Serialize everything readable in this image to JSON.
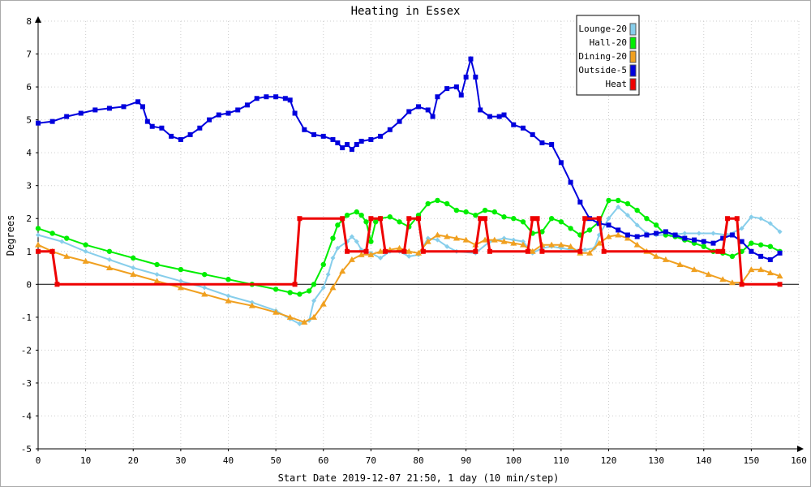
{
  "chart_data": {
    "type": "line",
    "title": "Heating in Essex",
    "xlabel": "Start Date 2019-12-07 21:50, 1 day (10 min/step)",
    "ylabel": "Degrees",
    "xlim": [
      0,
      160
    ],
    "ylim": [
      -5,
      8
    ],
    "xticks": [
      0,
      10,
      20,
      30,
      40,
      50,
      60,
      70,
      80,
      90,
      100,
      110,
      120,
      130,
      140,
      150,
      160
    ],
    "yticks": [
      -5,
      -4,
      -3,
      -2,
      -1,
      0,
      1,
      2,
      3,
      4,
      5,
      6,
      7,
      8
    ],
    "grid": true,
    "legend_position": "top-right",
    "series": [
      {
        "name": "Lounge-20",
        "color": "#87ceeb",
        "marker": "diamond",
        "points": [
          [
            0,
            1.5
          ],
          [
            5,
            1.3
          ],
          [
            10,
            1.0
          ],
          [
            15,
            0.75
          ],
          [
            20,
            0.5
          ],
          [
            25,
            0.3
          ],
          [
            30,
            0.1
          ],
          [
            35,
            -0.1
          ],
          [
            40,
            -0.35
          ],
          [
            45,
            -0.55
          ],
          [
            50,
            -0.8
          ],
          [
            53,
            -1.05
          ],
          [
            55,
            -1.2
          ],
          [
            57,
            -1.1
          ],
          [
            58,
            -0.5
          ],
          [
            60,
            -0.1
          ],
          [
            61,
            0.3
          ],
          [
            62,
            0.8
          ],
          [
            63,
            1.1
          ],
          [
            65,
            1.3
          ],
          [
            66,
            1.45
          ],
          [
            67,
            1.3
          ],
          [
            68,
            1.05
          ],
          [
            70,
            0.95
          ],
          [
            72,
            0.8
          ],
          [
            74,
            1.0
          ],
          [
            76,
            1.0
          ],
          [
            78,
            0.85
          ],
          [
            80,
            0.9
          ],
          [
            82,
            1.4
          ],
          [
            84,
            1.35
          ],
          [
            86,
            1.15
          ],
          [
            88,
            1.0
          ],
          [
            92,
            0.95
          ],
          [
            95,
            1.3
          ],
          [
            98,
            1.4
          ],
          [
            100,
            1.35
          ],
          [
            102,
            1.3
          ],
          [
            104,
            0.95
          ],
          [
            106,
            1.1
          ],
          [
            108,
            1.15
          ],
          [
            110,
            1.1
          ],
          [
            112,
            1.05
          ],
          [
            115,
            1.05
          ],
          [
            117,
            1.1
          ],
          [
            118,
            1.5
          ],
          [
            120,
            2.0
          ],
          [
            122,
            2.35
          ],
          [
            124,
            2.1
          ],
          [
            126,
            1.8
          ],
          [
            128,
            1.55
          ],
          [
            130,
            1.5
          ],
          [
            133,
            1.5
          ],
          [
            136,
            1.55
          ],
          [
            139,
            1.55
          ],
          [
            142,
            1.55
          ],
          [
            145,
            1.5
          ],
          [
            148,
            1.7
          ],
          [
            150,
            2.05
          ],
          [
            152,
            2.0
          ],
          [
            154,
            1.85
          ],
          [
            156,
            1.6
          ]
        ]
      },
      {
        "name": "Hall-20",
        "color": "#00ee00",
        "marker": "circle",
        "points": [
          [
            0,
            1.7
          ],
          [
            3,
            1.55
          ],
          [
            6,
            1.4
          ],
          [
            10,
            1.2
          ],
          [
            15,
            1.0
          ],
          [
            20,
            0.8
          ],
          [
            25,
            0.6
          ],
          [
            30,
            0.45
          ],
          [
            35,
            0.3
          ],
          [
            40,
            0.15
          ],
          [
            45,
            0.0
          ],
          [
            50,
            -0.15
          ],
          [
            53,
            -0.25
          ],
          [
            55,
            -0.3
          ],
          [
            57,
            -0.2
          ],
          [
            58,
            0.0
          ],
          [
            60,
            0.6
          ],
          [
            62,
            1.4
          ],
          [
            63,
            1.8
          ],
          [
            65,
            2.1
          ],
          [
            67,
            2.2
          ],
          [
            68,
            2.1
          ],
          [
            69,
            1.9
          ],
          [
            70,
            1.3
          ],
          [
            71,
            1.9
          ],
          [
            72,
            2.0
          ],
          [
            74,
            2.05
          ],
          [
            76,
            1.9
          ],
          [
            78,
            1.75
          ],
          [
            80,
            2.1
          ],
          [
            82,
            2.45
          ],
          [
            84,
            2.55
          ],
          [
            86,
            2.45
          ],
          [
            88,
            2.25
          ],
          [
            90,
            2.2
          ],
          [
            92,
            2.1
          ],
          [
            94,
            2.25
          ],
          [
            96,
            2.2
          ],
          [
            98,
            2.05
          ],
          [
            100,
            2.0
          ],
          [
            102,
            1.9
          ],
          [
            104,
            1.55
          ],
          [
            106,
            1.6
          ],
          [
            108,
            2.0
          ],
          [
            110,
            1.9
          ],
          [
            112,
            1.7
          ],
          [
            114,
            1.5
          ],
          [
            116,
            1.65
          ],
          [
            118,
            1.9
          ],
          [
            120,
            2.55
          ],
          [
            122,
            2.55
          ],
          [
            124,
            2.45
          ],
          [
            126,
            2.25
          ],
          [
            128,
            2.0
          ],
          [
            130,
            1.8
          ],
          [
            132,
            1.5
          ],
          [
            134,
            1.45
          ],
          [
            136,
            1.35
          ],
          [
            138,
            1.25
          ],
          [
            140,
            1.15
          ],
          [
            142,
            1.0
          ],
          [
            144,
            0.95
          ],
          [
            146,
            0.85
          ],
          [
            148,
            1.0
          ],
          [
            150,
            1.25
          ],
          [
            152,
            1.2
          ],
          [
            154,
            1.15
          ],
          [
            156,
            1.0
          ]
        ]
      },
      {
        "name": "Dining-20",
        "color": "#f0a020",
        "marker": "triangle",
        "points": [
          [
            0,
            1.2
          ],
          [
            3,
            1.0
          ],
          [
            6,
            0.85
          ],
          [
            10,
            0.7
          ],
          [
            15,
            0.5
          ],
          [
            20,
            0.3
          ],
          [
            25,
            0.1
          ],
          [
            30,
            -0.1
          ],
          [
            35,
            -0.3
          ],
          [
            40,
            -0.5
          ],
          [
            45,
            -0.65
          ],
          [
            50,
            -0.85
          ],
          [
            53,
            -1.0
          ],
          [
            56,
            -1.15
          ],
          [
            58,
            -1.0
          ],
          [
            60,
            -0.6
          ],
          [
            62,
            -0.1
          ],
          [
            64,
            0.4
          ],
          [
            66,
            0.75
          ],
          [
            68,
            0.9
          ],
          [
            70,
            0.9
          ],
          [
            72,
            1.0
          ],
          [
            74,
            1.05
          ],
          [
            76,
            1.1
          ],
          [
            78,
            1.0
          ],
          [
            80,
            0.95
          ],
          [
            82,
            1.3
          ],
          [
            84,
            1.5
          ],
          [
            86,
            1.45
          ],
          [
            88,
            1.4
          ],
          [
            90,
            1.35
          ],
          [
            92,
            1.2
          ],
          [
            94,
            1.35
          ],
          [
            96,
            1.35
          ],
          [
            98,
            1.3
          ],
          [
            100,
            1.25
          ],
          [
            102,
            1.2
          ],
          [
            104,
            1.0
          ],
          [
            106,
            1.2
          ],
          [
            108,
            1.2
          ],
          [
            110,
            1.2
          ],
          [
            112,
            1.15
          ],
          [
            114,
            0.95
          ],
          [
            116,
            0.95
          ],
          [
            118,
            1.25
          ],
          [
            120,
            1.45
          ],
          [
            122,
            1.5
          ],
          [
            124,
            1.4
          ],
          [
            126,
            1.2
          ],
          [
            128,
            1.0
          ],
          [
            130,
            0.85
          ],
          [
            132,
            0.75
          ],
          [
            135,
            0.6
          ],
          [
            138,
            0.45
          ],
          [
            141,
            0.3
          ],
          [
            144,
            0.15
          ],
          [
            146,
            0.05
          ],
          [
            148,
            0.05
          ],
          [
            150,
            0.45
          ],
          [
            152,
            0.45
          ],
          [
            154,
            0.35
          ],
          [
            156,
            0.25
          ]
        ]
      },
      {
        "name": "Outside-5",
        "color": "#0000dd",
        "marker": "square",
        "points": [
          [
            0,
            4.9
          ],
          [
            3,
            4.95
          ],
          [
            6,
            5.1
          ],
          [
            9,
            5.2
          ],
          [
            12,
            5.3
          ],
          [
            15,
            5.35
          ],
          [
            18,
            5.4
          ],
          [
            21,
            5.55
          ],
          [
            22,
            5.4
          ],
          [
            23,
            4.95
          ],
          [
            24,
            4.8
          ],
          [
            26,
            4.75
          ],
          [
            28,
            4.5
          ],
          [
            30,
            4.4
          ],
          [
            32,
            4.55
          ],
          [
            34,
            4.75
          ],
          [
            36,
            5.0
          ],
          [
            38,
            5.15
          ],
          [
            40,
            5.2
          ],
          [
            42,
            5.3
          ],
          [
            44,
            5.45
          ],
          [
            46,
            5.65
          ],
          [
            48,
            5.7
          ],
          [
            50,
            5.7
          ],
          [
            52,
            5.65
          ],
          [
            53,
            5.6
          ],
          [
            54,
            5.2
          ],
          [
            56,
            4.7
          ],
          [
            58,
            4.55
          ],
          [
            60,
            4.5
          ],
          [
            62,
            4.4
          ],
          [
            63,
            4.3
          ],
          [
            64,
            4.15
          ],
          [
            65,
            4.25
          ],
          [
            66,
            4.1
          ],
          [
            67,
            4.25
          ],
          [
            68,
            4.35
          ],
          [
            70,
            4.4
          ],
          [
            72,
            4.5
          ],
          [
            74,
            4.7
          ],
          [
            76,
            4.95
          ],
          [
            78,
            5.25
          ],
          [
            80,
            5.4
          ],
          [
            82,
            5.3
          ],
          [
            83,
            5.1
          ],
          [
            84,
            5.7
          ],
          [
            86,
            5.95
          ],
          [
            88,
            6.0
          ],
          [
            89,
            5.75
          ],
          [
            90,
            6.3
          ],
          [
            91,
            6.85
          ],
          [
            92,
            6.3
          ],
          [
            93,
            5.3
          ],
          [
            95,
            5.1
          ],
          [
            97,
            5.1
          ],
          [
            98,
            5.15
          ],
          [
            100,
            4.85
          ],
          [
            102,
            4.75
          ],
          [
            104,
            4.55
          ],
          [
            106,
            4.3
          ],
          [
            108,
            4.25
          ],
          [
            110,
            3.7
          ],
          [
            112,
            3.1
          ],
          [
            114,
            2.5
          ],
          [
            116,
            2.0
          ],
          [
            118,
            1.85
          ],
          [
            120,
            1.8
          ],
          [
            122,
            1.65
          ],
          [
            124,
            1.5
          ],
          [
            126,
            1.45
          ],
          [
            128,
            1.5
          ],
          [
            130,
            1.55
          ],
          [
            132,
            1.6
          ],
          [
            134,
            1.5
          ],
          [
            136,
            1.4
          ],
          [
            138,
            1.35
          ],
          [
            140,
            1.3
          ],
          [
            142,
            1.25
          ],
          [
            144,
            1.4
          ],
          [
            146,
            1.5
          ],
          [
            148,
            1.3
          ],
          [
            150,
            1.0
          ],
          [
            152,
            0.85
          ],
          [
            154,
            0.75
          ],
          [
            156,
            0.95
          ]
        ]
      },
      {
        "name": "Heat",
        "color": "#ee0000",
        "marker": "square",
        "points": [
          [
            0,
            1
          ],
          [
            3,
            1
          ],
          [
            4,
            0
          ],
          [
            54,
            0
          ],
          [
            55,
            2
          ],
          [
            64,
            2
          ],
          [
            65,
            1
          ],
          [
            69,
            1
          ],
          [
            70,
            2
          ],
          [
            72,
            2
          ],
          [
            73,
            1
          ],
          [
            77,
            1
          ],
          [
            78,
            2
          ],
          [
            80,
            2
          ],
          [
            81,
            1
          ],
          [
            92,
            1
          ],
          [
            93,
            2
          ],
          [
            94,
            2
          ],
          [
            95,
            1
          ],
          [
            103,
            1
          ],
          [
            104,
            2
          ],
          [
            105,
            2
          ],
          [
            106,
            1
          ],
          [
            114,
            1
          ],
          [
            115,
            2
          ],
          [
            118,
            2
          ],
          [
            119,
            1
          ],
          [
            143,
            1
          ],
          [
            144,
            1
          ],
          [
            145,
            2
          ],
          [
            147,
            2
          ],
          [
            148,
            0
          ],
          [
            156,
            0
          ]
        ]
      }
    ]
  }
}
